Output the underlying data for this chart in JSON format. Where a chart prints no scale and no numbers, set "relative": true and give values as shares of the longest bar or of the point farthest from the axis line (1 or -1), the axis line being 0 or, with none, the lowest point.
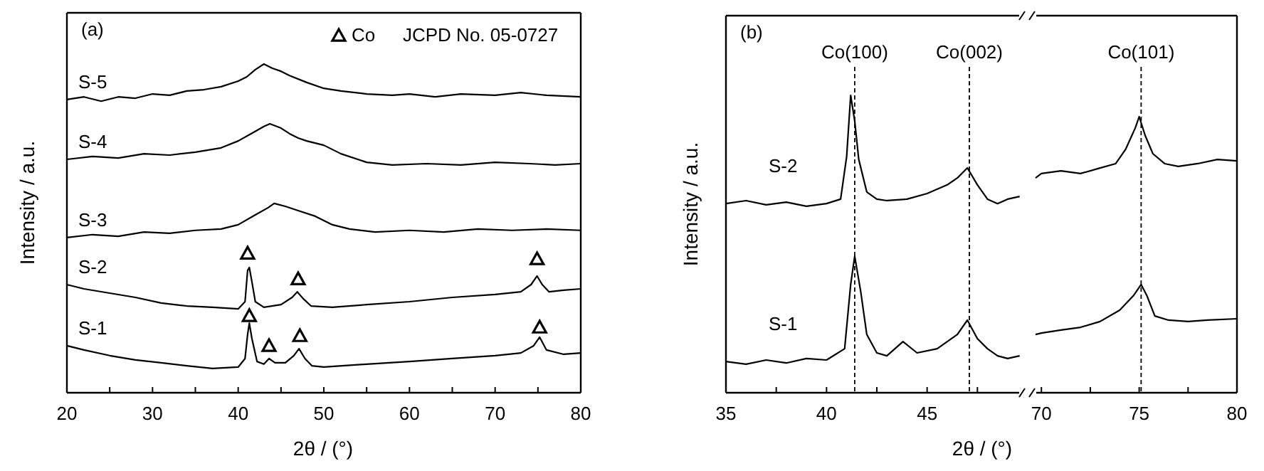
{
  "chart_data": [
    {
      "type": "line",
      "title": "(a)",
      "xlabel": "2θ / (°)",
      "ylabel": "Intensity / a.u.",
      "relative": true,
      "tick_labels": "x",
      "xlim": [
        20,
        80
      ],
      "xticks": [
        20,
        {
          "value": 25,
          "label": null
        },
        30,
        {
          "value": 35,
          "label": null
        },
        40,
        {
          "value": 45,
          "label": null
        },
        50,
        {
          "value": 55,
          "label": null
        },
        60,
        {
          "value": 65,
          "label": null
        },
        70,
        {
          "value": 75,
          "label": null
        },
        80
      ],
      "legend": "top right",
      "annotations": [
        "JCPD No. 05-0727"
      ],
      "series": [
        {
          "name": "S-5",
          "color": "#000000",
          "x": [
            20,
            22,
            24,
            26,
            28,
            30,
            32,
            34,
            36,
            38,
            40,
            41,
            42,
            43,
            44,
            45,
            46,
            48,
            50,
            52,
            55,
            58,
            60,
            63,
            66,
            70,
            73,
            76,
            80
          ],
          "values": [
            0.892,
            0.9,
            0.887,
            0.9,
            0.896,
            0.909,
            0.905,
            0.918,
            0.922,
            0.931,
            0.948,
            0.961,
            0.983,
            1.0,
            0.987,
            0.978,
            0.965,
            0.944,
            0.926,
            0.918,
            0.909,
            0.905,
            0.909,
            0.9,
            0.909,
            0.905,
            0.913,
            0.905,
            0.9
          ]
        },
        {
          "name": "S-4",
          "color": "#000000",
          "x": [
            20,
            23,
            26,
            29,
            32,
            35,
            38,
            40,
            41.5,
            43,
            43.7,
            45,
            46,
            47,
            48,
            50,
            52,
            55,
            58,
            62,
            66,
            70,
            74,
            77,
            80
          ],
          "values": [
            0.71,
            0.719,
            0.714,
            0.727,
            0.723,
            0.732,
            0.745,
            0.766,
            0.788,
            0.81,
            0.818,
            0.805,
            0.788,
            0.775,
            0.766,
            0.753,
            0.727,
            0.701,
            0.693,
            0.697,
            0.693,
            0.701,
            0.697,
            0.693,
            0.697
          ]
        },
        {
          "name": "S-3",
          "color": "#000000",
          "x": [
            20,
            23,
            26,
            29,
            32,
            35,
            38,
            40,
            42,
            43.5,
            44.2,
            45.5,
            47,
            49,
            51,
            53,
            56,
            60,
            64,
            68,
            72,
            76,
            80
          ],
          "values": [
            0.472,
            0.481,
            0.476,
            0.489,
            0.485,
            0.494,
            0.498,
            0.511,
            0.541,
            0.563,
            0.576,
            0.567,
            0.554,
            0.537,
            0.511,
            0.498,
            0.489,
            0.494,
            0.489,
            0.498,
            0.494,
            0.498,
            0.494
          ]
        },
        {
          "name": "S-2",
          "color": "#000000",
          "x": [
            20,
            22,
            25,
            28,
            31,
            34,
            37,
            40,
            40.8,
            41.1,
            41.3,
            41.6,
            42,
            43,
            45,
            46.3,
            46.9,
            47.6,
            48.5,
            51,
            55,
            60,
            65,
            70,
            73,
            74.2,
            74.9,
            75.5,
            76.3,
            78,
            80
          ],
          "values": [
            0.329,
            0.316,
            0.303,
            0.29,
            0.273,
            0.264,
            0.26,
            0.255,
            0.277,
            0.372,
            0.381,
            0.338,
            0.277,
            0.26,
            0.268,
            0.29,
            0.307,
            0.286,
            0.264,
            0.26,
            0.268,
            0.277,
            0.29,
            0.299,
            0.307,
            0.329,
            0.355,
            0.329,
            0.307,
            0.312,
            0.316
          ]
        },
        {
          "name": "S-1",
          "color": "#000000",
          "x": [
            20,
            22,
            25,
            28,
            31,
            34,
            37,
            40,
            40.8,
            41.1,
            41.3,
            41.6,
            42.2,
            43,
            43.6,
            44.3,
            45.5,
            46.5,
            47.1,
            47.8,
            48.6,
            50,
            55,
            60,
            65,
            70,
            73,
            74.5,
            75.2,
            76,
            78,
            80
          ],
          "values": [
            0.143,
            0.13,
            0.113,
            0.1,
            0.091,
            0.082,
            0.074,
            0.078,
            0.104,
            0.177,
            0.212,
            0.165,
            0.095,
            0.087,
            0.104,
            0.091,
            0.091,
            0.113,
            0.134,
            0.104,
            0.082,
            0.078,
            0.087,
            0.095,
            0.104,
            0.113,
            0.121,
            0.143,
            0.169,
            0.13,
            0.117,
            0.121
          ]
        },
        {
          "name": "Co",
          "type": "scatter",
          "marker": "triangle",
          "color": "#000000",
          "x": [
            41.1,
            47,
            74.9,
            41.3,
            43.6,
            47.2,
            75.2
          ],
          "values": [
            0.424,
            0.346,
            0.407,
            0.234,
            0.143,
            0.173,
            0.199
          ]
        }
      ]
    },
    {
      "type": "line",
      "title": "(b)",
      "xlabel": "2θ / (°)",
      "ylabel": "Intensity / a.u.",
      "relative": true,
      "tick_labels": "x",
      "xlim": [
        35,
        50
      ],
      "xticks": [
        35,
        {
          "value": 37.5,
          "label": null
        },
        40,
        {
          "value": 42.5,
          "label": null
        },
        45,
        {
          "value": 47.5,
          "label": null
        }
      ],
      "ref_lines": [
        {
          "axis": "x",
          "value": 41.4,
          "label": "Co(100)",
          "line_style": "dashed"
        },
        {
          "axis": "x",
          "value": 47.1,
          "label": "Co(002)",
          "line_style": "dashed"
        }
      ],
      "series": [
        {
          "name": "S-2",
          "color": "#000000",
          "x": [
            35,
            36,
            37,
            38,
            39,
            40,
            40.7,
            41.0,
            41.2,
            41.4,
            41.6,
            42,
            42.5,
            43,
            44,
            45,
            46,
            46.5,
            47,
            47.5,
            48,
            48.5,
            49,
            49.6
          ],
          "values": [
            0.636,
            0.646,
            0.632,
            0.641,
            0.627,
            0.636,
            0.651,
            0.794,
            1.0,
            0.914,
            0.785,
            0.675,
            0.651,
            0.646,
            0.651,
            0.67,
            0.699,
            0.722,
            0.756,
            0.699,
            0.651,
            0.636,
            0.651,
            0.66
          ]
        },
        {
          "name": "S-1",
          "color": "#000000",
          "x": [
            35,
            36,
            37,
            38,
            39,
            40,
            40.9,
            41.2,
            41.4,
            41.7,
            42,
            42.5,
            43,
            43.8,
            44.5,
            45.5,
            46.5,
            47,
            47.5,
            48,
            48.5,
            49,
            49.6
          ],
          "values": [
            0.105,
            0.096,
            0.11,
            0.1,
            0.115,
            0.11,
            0.148,
            0.364,
            0.459,
            0.34,
            0.196,
            0.134,
            0.124,
            0.172,
            0.134,
            0.148,
            0.196,
            0.244,
            0.182,
            0.148,
            0.124,
            0.115,
            0.124
          ]
        }
      ]
    },
    {
      "type": "line",
      "relative": true,
      "tick_labels": "x",
      "xlim": [
        69.3,
        80
      ],
      "xticks": [
        70,
        {
          "value": 72.5,
          "label": null
        },
        75,
        {
          "value": 77.5,
          "label": null
        },
        80
      ],
      "ref_lines": [
        {
          "axis": "x",
          "value": 75.1,
          "label": "Co(101)",
          "line_style": "dashed"
        }
      ],
      "series": [
        {
          "color": "#000000",
          "x": [
            69.7,
            70,
            71,
            72,
            73,
            73.8,
            74.3,
            74.8,
            75.0,
            75.3,
            75.7,
            76.3,
            77,
            78,
            79,
            80
          ],
          "values": [
            0.778,
            0.794,
            0.804,
            0.794,
            0.814,
            0.83,
            0.881,
            0.959,
            1.0,
            0.933,
            0.866,
            0.83,
            0.82,
            0.83,
            0.845,
            0.84
          ]
        },
        {
          "color": "#000000",
          "x": [
            69.7,
            70,
            71,
            72,
            73,
            74,
            74.7,
            75.1,
            75.4,
            75.8,
            76.5,
            77.5,
            78.5,
            80
          ],
          "values": [
            0.211,
            0.216,
            0.227,
            0.237,
            0.258,
            0.299,
            0.351,
            0.392,
            0.351,
            0.278,
            0.263,
            0.258,
            0.263,
            0.268
          ]
        }
      ]
    }
  ]
}
